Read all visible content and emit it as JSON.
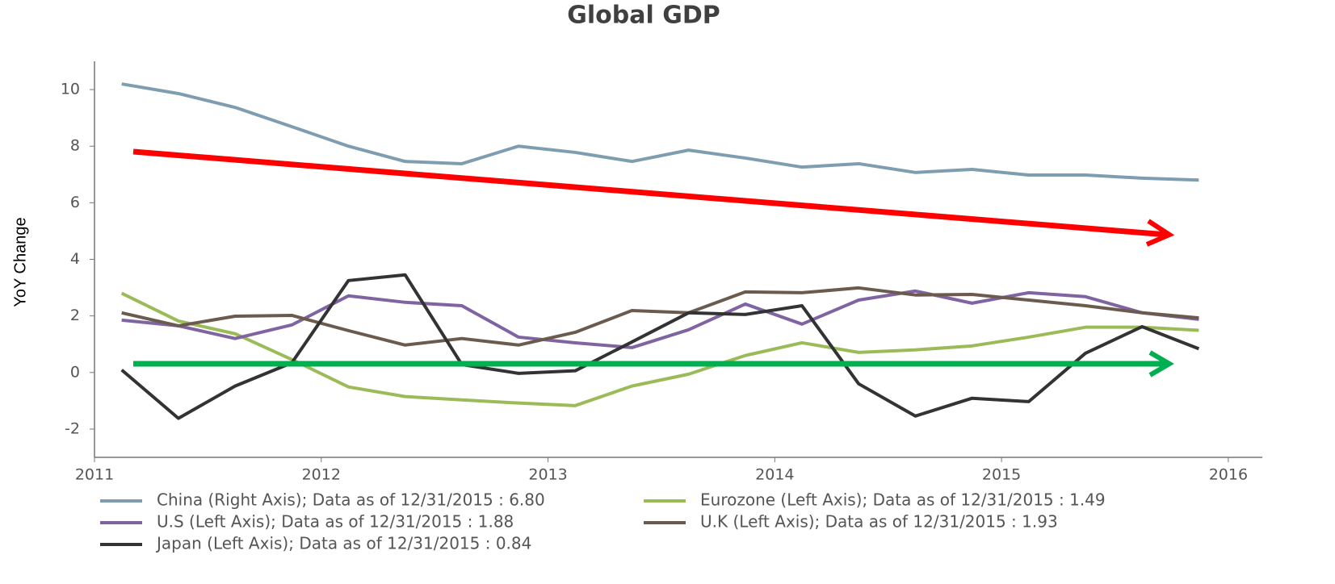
{
  "chart_data": {
    "type": "line",
    "title": "Global GDP",
    "y_label": "YoY Change",
    "x": [
      2011.12,
      2011.37,
      2011.62,
      2011.87,
      2012.12,
      2012.37,
      2012.62,
      2012.87,
      2013.12,
      2013.37,
      2013.62,
      2013.87,
      2014.12,
      2014.37,
      2014.62,
      2014.87,
      2015.12,
      2015.37,
      2015.62,
      2015.87
    ],
    "series": [
      {
        "name": "China (Right Axis); Data as of 12/31/2015 : 6.80",
        "color": "#7f9db0",
        "values": [
          10.2,
          9.86,
          9.37,
          8.69,
          8.0,
          7.46,
          7.38,
          8.0,
          7.78,
          7.46,
          7.86,
          7.58,
          7.26,
          7.38,
          7.07,
          7.18,
          6.98,
          6.98,
          6.87,
          6.8
        ]
      },
      {
        "name": "Eurozone (Left Axis); Data as of 12/31/2015 : 1.49",
        "color": "#9bbb59",
        "values": [
          2.8,
          1.82,
          1.37,
          0.46,
          -0.51,
          -0.85,
          -0.97,
          -1.08,
          -1.17,
          -0.48,
          -0.06,
          0.6,
          1.05,
          0.71,
          0.8,
          0.94,
          1.25,
          1.6,
          1.6,
          1.49
        ]
      },
      {
        "name": "U.S (Left Axis); Data as of 12/31/2015 : 1.88",
        "color": "#8064a2",
        "values": [
          1.85,
          1.65,
          1.2,
          1.68,
          2.71,
          2.48,
          2.36,
          1.25,
          1.05,
          0.88,
          1.51,
          2.42,
          1.71,
          2.56,
          2.88,
          2.45,
          2.82,
          2.68,
          2.11,
          1.88
        ]
      },
      {
        "name": "U.K (Left Axis); Data as of 12/31/2015 : 1.93",
        "color": "#6b5b4e",
        "values": [
          2.11,
          1.65,
          1.99,
          2.02,
          1.48,
          0.97,
          1.2,
          0.97,
          1.42,
          2.19,
          2.11,
          2.85,
          2.82,
          2.99,
          2.74,
          2.76,
          2.56,
          2.36,
          2.11,
          1.93
        ]
      },
      {
        "name": "Japan (Left Axis); Data as of 12/31/2015 : 0.84",
        "color": "#333333",
        "values": [
          0.09,
          -1.62,
          -0.48,
          0.34,
          3.25,
          3.45,
          0.28,
          -0.03,
          0.06,
          1.08,
          2.11,
          2.05,
          2.36,
          -0.4,
          -1.54,
          -0.91,
          -1.03,
          0.68,
          1.62,
          0.84
        ]
      }
    ],
    "xlim": [
      2011,
      2016.15
    ],
    "xticks": [
      2011,
      2012,
      2013,
      2014,
      2015,
      2016
    ],
    "ylim": [
      -3,
      11
    ],
    "yticks": [
      -2,
      0,
      2,
      4,
      6,
      8,
      10
    ],
    "grid": false
  }
}
